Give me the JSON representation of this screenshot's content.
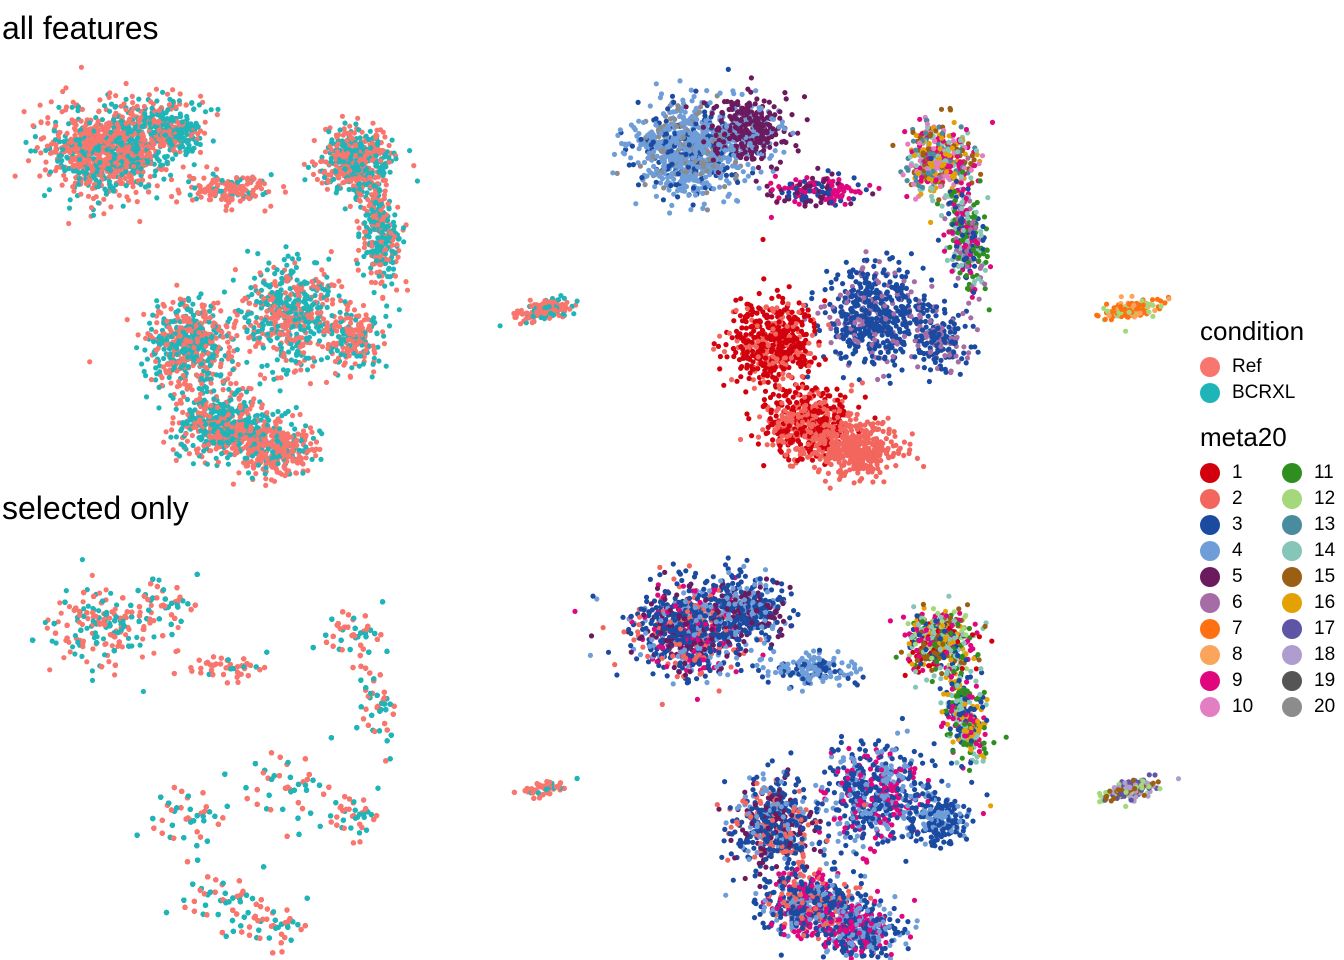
{
  "rows": [
    {
      "title": "all features"
    },
    {
      "title": "selected only"
    }
  ],
  "chart_data": [
    {
      "type": "scatter",
      "row": "all features",
      "color_by": "condition",
      "title": "",
      "xlabel": "",
      "ylabel": "",
      "axes": "none",
      "grid": false,
      "groups_present": [
        "Ref",
        "BCRXL"
      ],
      "clusters": [
        "main",
        "satellite"
      ]
    },
    {
      "type": "scatter",
      "row": "all features",
      "color_by": "meta20",
      "title": "",
      "xlabel": "",
      "ylabel": "",
      "axes": "none",
      "grid": false,
      "groups_present": [
        "1",
        "2",
        "3",
        "4",
        "5",
        "6",
        "7",
        "8",
        "9",
        "10",
        "11",
        "12",
        "13",
        "14",
        "15",
        "16",
        "19",
        "20"
      ],
      "clusters": [
        "main",
        "satellite"
      ]
    },
    {
      "type": "scatter",
      "row": "selected only",
      "color_by": "condition",
      "title": "",
      "xlabel": "",
      "ylabel": "",
      "axes": "none",
      "grid": false,
      "groups_present": [
        "Ref",
        "BCRXL"
      ],
      "clusters": [
        "main",
        "satellite"
      ]
    },
    {
      "type": "scatter",
      "row": "selected only",
      "color_by": "meta20",
      "title": "",
      "xlabel": "",
      "ylabel": "",
      "axes": "none",
      "grid": false,
      "groups_present": [
        "1",
        "2",
        "3",
        "4",
        "5",
        "7",
        "8",
        "9",
        "10",
        "11",
        "12",
        "13",
        "14",
        "15",
        "16",
        "17",
        "18"
      ],
      "clusters": [
        "main",
        "satellite"
      ]
    }
  ],
  "legends": {
    "placement": "right",
    "condition": {
      "title": "condition",
      "items": [
        {
          "label": "Ref",
          "color": "#F8766D"
        },
        {
          "label": "BCRXL",
          "color": "#1FB5B8"
        }
      ]
    },
    "meta20": {
      "title": "meta20",
      "items": [
        {
          "label": "1",
          "color": "#D2000C"
        },
        {
          "label": "2",
          "color": "#F2665E"
        },
        {
          "label": "3",
          "color": "#1B4BA1"
        },
        {
          "label": "4",
          "color": "#6E9DD8"
        },
        {
          "label": "5",
          "color": "#6C1A5E"
        },
        {
          "label": "6",
          "color": "#A56CA5"
        },
        {
          "label": "7",
          "color": "#FF7012"
        },
        {
          "label": "8",
          "color": "#FBA45C"
        },
        {
          "label": "9",
          "color": "#E0077E"
        },
        {
          "label": "10",
          "color": "#E47EC3"
        },
        {
          "label": "11",
          "color": "#2E8F1E"
        },
        {
          "label": "12",
          "color": "#A4D87A"
        },
        {
          "label": "13",
          "color": "#4A8C9F"
        },
        {
          "label": "14",
          "color": "#86C6B8"
        },
        {
          "label": "15",
          "color": "#9A5F14"
        },
        {
          "label": "16",
          "color": "#E3A103"
        },
        {
          "label": "17",
          "color": "#5E55A6"
        },
        {
          "label": "18",
          "color": "#B09DCF"
        },
        {
          "label": "19",
          "color": "#555555"
        },
        {
          "label": "20",
          "color": "#8C8C8C"
        }
      ]
    }
  }
}
